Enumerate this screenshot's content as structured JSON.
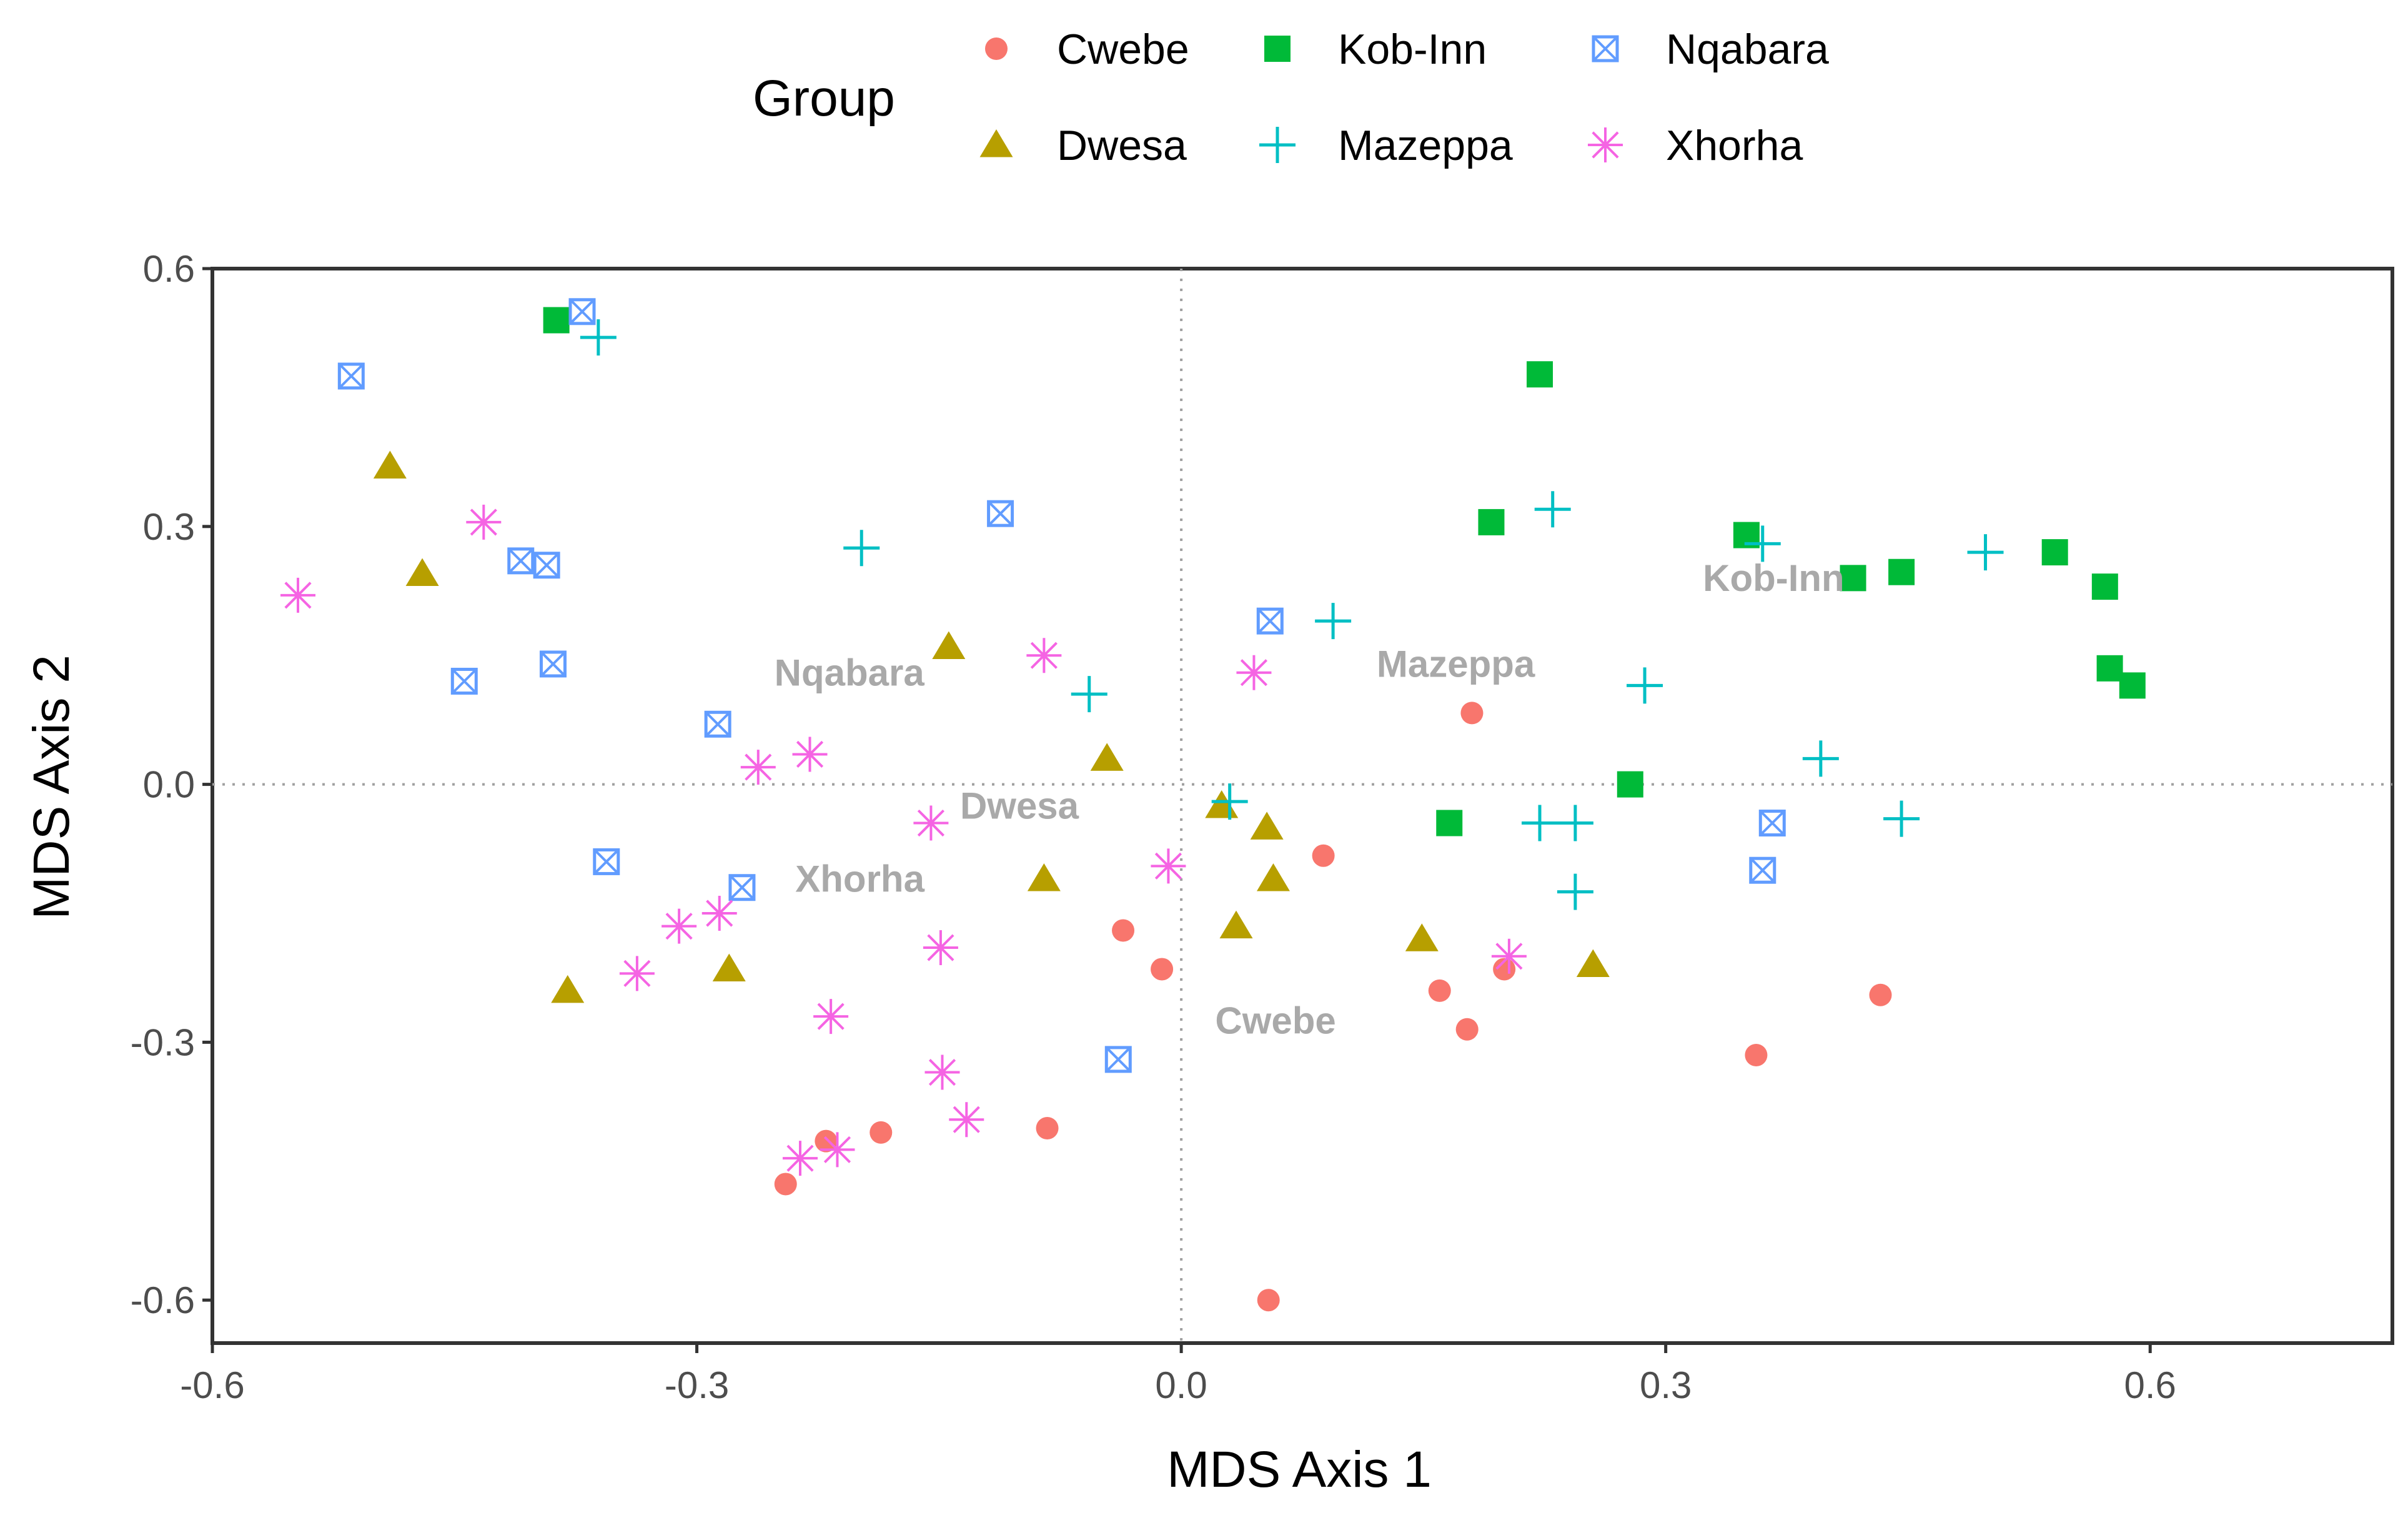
{
  "chart_data": {
    "type": "scatter",
    "xlabel": "MDS Axis 1",
    "ylabel": "MDS Axis 2",
    "xlim": [
      -0.6,
      0.75
    ],
    "ylim": [
      -0.65,
      0.6
    ],
    "x_ticks": [
      -0.6,
      -0.3,
      0.0,
      0.3,
      0.6
    ],
    "y_ticks": [
      -0.6,
      -0.3,
      0.0,
      0.3,
      0.6
    ],
    "x_tick_labels": [
      "-0.6",
      "-0.3",
      "0.0",
      "0.3",
      "0.6"
    ],
    "y_tick_labels": [
      "-0.6",
      "-0.3",
      "0.0",
      "0.3",
      "0.6"
    ],
    "grid": false,
    "reference_lines": {
      "x": 0.0,
      "y": 0.0,
      "style": "dotted"
    },
    "legend": {
      "title": "Group",
      "position": "top"
    },
    "series": [
      {
        "name": "Cwebe",
        "color": "#F8766D",
        "shape": "circle",
        "points": [
          [
            -0.245,
            -0.465
          ],
          [
            -0.22,
            -0.415
          ],
          [
            -0.186,
            -0.405
          ],
          [
            -0.083,
            -0.4
          ],
          [
            -0.036,
            -0.17
          ],
          [
            -0.012,
            -0.215
          ],
          [
            0.054,
            -0.6
          ],
          [
            0.088,
            -0.083
          ],
          [
            0.16,
            -0.24
          ],
          [
            0.177,
            -0.285
          ],
          [
            0.18,
            0.083
          ],
          [
            0.2,
            -0.215
          ],
          [
            0.356,
            -0.315
          ],
          [
            0.433,
            -0.245
          ]
        ]
      },
      {
        "name": "Dwesa",
        "color": "#B79F00",
        "shape": "triangle",
        "points": [
          [
            -0.49,
            0.37
          ],
          [
            -0.47,
            0.245
          ],
          [
            -0.38,
            -0.24
          ],
          [
            -0.28,
            -0.215
          ],
          [
            -0.144,
            0.16
          ],
          [
            -0.085,
            -0.11
          ],
          [
            -0.046,
            0.03
          ],
          [
            0.025,
            -0.025
          ],
          [
            0.034,
            -0.165
          ],
          [
            0.053,
            -0.05
          ],
          [
            0.057,
            -0.11
          ],
          [
            0.149,
            -0.18
          ],
          [
            0.255,
            -0.21
          ]
        ]
      },
      {
        "name": "Kob-Inn",
        "color": "#00BA38",
        "shape": "square",
        "points": [
          [
            -0.387,
            0.54
          ],
          [
            0.166,
            -0.045
          ],
          [
            0.192,
            0.305
          ],
          [
            0.222,
            0.477
          ],
          [
            0.278,
            0.0
          ],
          [
            0.35,
            0.29
          ],
          [
            0.416,
            0.24
          ],
          [
            0.446,
            0.247
          ],
          [
            0.541,
            0.27
          ],
          [
            0.572,
            0.23
          ],
          [
            0.575,
            0.135
          ],
          [
            0.589,
            0.115
          ]
        ]
      },
      {
        "name": "Mazeppa",
        "color": "#00BFC4",
        "shape": "plus",
        "points": [
          [
            -0.361,
            0.52
          ],
          [
            -0.198,
            0.275
          ],
          [
            -0.057,
            0.105
          ],
          [
            0.03,
            -0.02
          ],
          [
            0.094,
            0.19
          ],
          [
            0.222,
            -0.045
          ],
          [
            0.23,
            0.32
          ],
          [
            0.244,
            -0.045
          ],
          [
            0.244,
            -0.125
          ],
          [
            0.287,
            0.115
          ],
          [
            0.36,
            0.28
          ],
          [
            0.396,
            0.03
          ],
          [
            0.446,
            -0.04
          ],
          [
            0.498,
            0.27
          ]
        ]
      },
      {
        "name": "Nqabara",
        "color": "#619CFF",
        "shape": "square-x",
        "points": [
          [
            -0.514,
            0.475
          ],
          [
            -0.444,
            0.12
          ],
          [
            -0.409,
            0.26
          ],
          [
            -0.393,
            0.255
          ],
          [
            -0.389,
            0.14
          ],
          [
            -0.371,
            0.55
          ],
          [
            -0.356,
            -0.09
          ],
          [
            -0.287,
            0.07
          ],
          [
            -0.272,
            -0.12
          ],
          [
            -0.112,
            0.315
          ],
          [
            -0.039,
            -0.32
          ],
          [
            0.055,
            0.19
          ],
          [
            0.36,
            -0.1
          ],
          [
            0.366,
            -0.045
          ]
        ]
      },
      {
        "name": "Xhorha",
        "color": "#F564E3",
        "shape": "asterisk",
        "points": [
          [
            -0.547,
            0.22
          ],
          [
            -0.432,
            0.305
          ],
          [
            -0.337,
            -0.22
          ],
          [
            -0.311,
            -0.165
          ],
          [
            -0.286,
            -0.15
          ],
          [
            -0.262,
            0.02
          ],
          [
            -0.23,
            0.035
          ],
          [
            -0.236,
            -0.435
          ],
          [
            -0.217,
            -0.27
          ],
          [
            -0.213,
            -0.425
          ],
          [
            -0.155,
            -0.045
          ],
          [
            -0.149,
            -0.19
          ],
          [
            -0.148,
            -0.335
          ],
          [
            -0.133,
            -0.39
          ],
          [
            -0.085,
            0.15
          ],
          [
            -0.008,
            -0.095
          ],
          [
            0.045,
            0.13
          ],
          [
            0.203,
            -0.2
          ]
        ]
      }
    ],
    "annotations": [
      {
        "text": "Kob-Inn",
        "x": 0.323,
        "y": 0.225
      },
      {
        "text": "Mazeppa",
        "x": 0.121,
        "y": 0.125
      },
      {
        "text": "Nqabara",
        "x": -0.252,
        "y": 0.115
      },
      {
        "text": "Dwesa",
        "x": -0.137,
        "y": -0.04
      },
      {
        "text": "Xhorha",
        "x": -0.239,
        "y": -0.125
      },
      {
        "text": "Cwebe",
        "x": 0.021,
        "y": -0.29
      }
    ]
  }
}
